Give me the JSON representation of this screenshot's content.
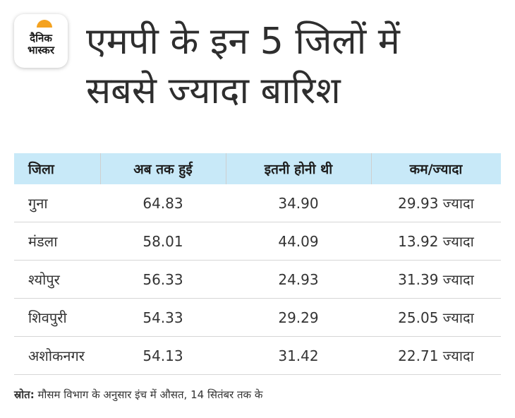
{
  "logo": {
    "line1": "दैनिक",
    "line2": "भास्कर"
  },
  "title": {
    "line1": "एमपी के इन 5 जिलों में",
    "line2": "सबसे ज्यादा बारिश"
  },
  "table": {
    "headers": [
      "जिला",
      "अब तक हुई",
      "इतनी होनी थी",
      "कम/ज्यादा"
    ],
    "rows": [
      [
        "गुना",
        "64.83",
        "34.90",
        "29.93 ज्यादा"
      ],
      [
        "मंडला",
        "58.01",
        "44.09",
        "13.92 ज्यादा"
      ],
      [
        "श्योपुर",
        "56.33",
        "24.93",
        "31.39 ज्यादा"
      ],
      [
        "शिवपुरी",
        "54.33",
        "29.29",
        "25.05 ज्यादा"
      ],
      [
        "अशोकनगर",
        "54.13",
        "31.42",
        "22.71 ज्यादा"
      ]
    ]
  },
  "source": {
    "label": "स्रोत:",
    "text": "मौसम विभाग के अनुसार इंच में औसत, 14 सितंबर तक के"
  },
  "colors": {
    "header_bg": "#c8e9f8",
    "logo_sun": "#f4a21f"
  }
}
